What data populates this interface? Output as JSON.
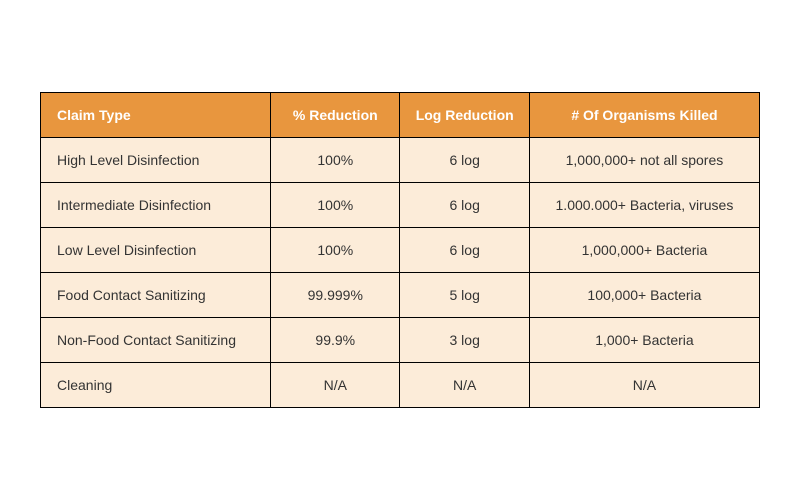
{
  "table": {
    "type": "table",
    "background_color": "#ffffff",
    "header_bg_color": "#e8963e",
    "header_text_color": "#ffffff",
    "row_bg_color": "#fcecd9",
    "cell_text_color": "#333333",
    "border_color": "#000000",
    "font_family": "Arial",
    "header_fontsize": 14,
    "cell_fontsize": 14,
    "header_fontweight": "bold",
    "column_widths": [
      "32%",
      "18%",
      "18%",
      "32%"
    ],
    "column_alignments": [
      "left",
      "center",
      "center",
      "center"
    ],
    "columns": [
      "Claim Type",
      "% Reduction",
      "Log Reduction",
      "# Of Organisms Killed"
    ],
    "rows": [
      [
        "High Level Disinfection",
        "100%",
        "6 log",
        "1,000,000+ not all spores"
      ],
      [
        "Intermediate Disinfection",
        "100%",
        "6 log",
        "1.000.000+ Bacteria, viruses"
      ],
      [
        "Low Level Disinfection",
        "100%",
        "6 log",
        "1,000,000+ Bacteria"
      ],
      [
        "Food Contact Sanitizing",
        "99.999%",
        "5 log",
        "100,000+ Bacteria"
      ],
      [
        "Non-Food Contact Sanitizing",
        "99.9%",
        "3 log",
        "1,000+ Bacteria"
      ],
      [
        "Cleaning",
        "N/A",
        "N/A",
        "N/A"
      ]
    ]
  }
}
